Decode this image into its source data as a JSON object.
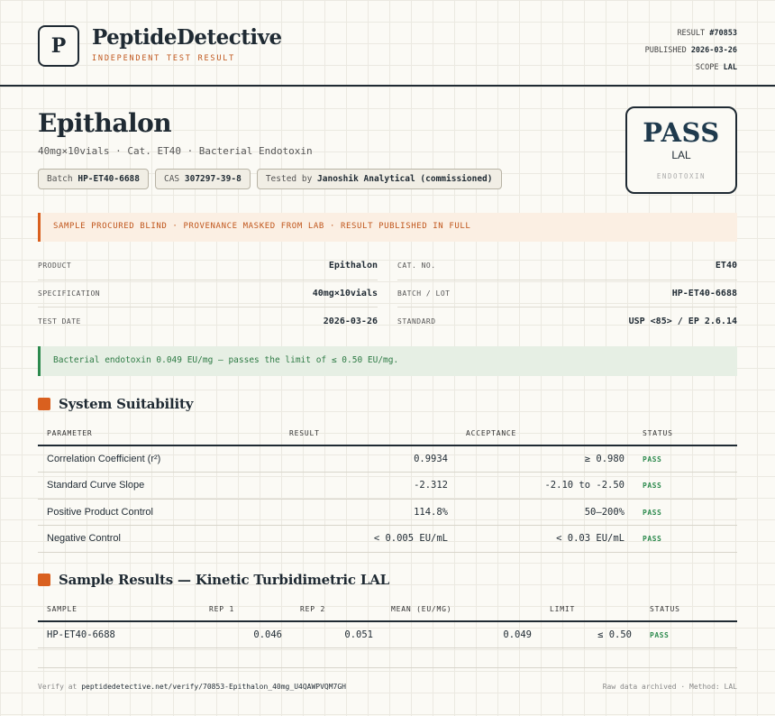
{
  "header": {
    "logo_letter": "P",
    "brand": "PeptideDetective",
    "brand_sub": "INDEPENDENT TEST RESULT",
    "result_label": "RESULT",
    "result_value": "#70853",
    "published_label": "PUBLISHED",
    "published_value": "2026-03-26",
    "scope_label": "SCOPE",
    "scope_value": "LAL"
  },
  "product": {
    "title": "Epithalon",
    "subtitle": "40mg×10vials · Cat. ET40 · Bacterial Endotoxin",
    "chips": [
      {
        "label": "Batch",
        "value": "HP-ET40-6688"
      },
      {
        "label": "CAS",
        "value": "307297-39-8"
      },
      {
        "label": "Tested by",
        "value": "Janoshik Analytical (commissioned)"
      }
    ]
  },
  "verdict": {
    "main": "PASS",
    "method": "LAL",
    "label": "ENDOTOXIN"
  },
  "notice_orange": "SAMPLE PROCURED BLIND · PROVENANCE MASKED FROM LAB · RESULT PUBLISHED IN FULL",
  "info_left": [
    {
      "label": "PRODUCT",
      "value": "Epithalon"
    },
    {
      "label": "SPECIFICATION",
      "value": "40mg×10vials"
    },
    {
      "label": "TEST DATE",
      "value": "2026-03-26"
    }
  ],
  "info_right": [
    {
      "label": "CAT. NO.",
      "value": "ET40"
    },
    {
      "label": "BATCH / LOT",
      "value": "HP-ET40-6688"
    },
    {
      "label": "STANDARD",
      "value": "USP <85> / EP 2.6.14"
    }
  ],
  "notice_green": "Bacterial endotoxin 0.049 EU/mg — passes the limit of ≤ 0.50 EU/mg.",
  "suitability": {
    "title": "System Suitability",
    "headers": [
      "PARAMETER",
      "RESULT",
      "ACCEPTANCE",
      "STATUS"
    ],
    "rows": [
      {
        "param": "Correlation Coefficient (r²)",
        "result": "0.9934",
        "acceptance": "≥ 0.980",
        "status": "PASS"
      },
      {
        "param": "Standard Curve Slope",
        "result": "-2.312",
        "acceptance": "-2.10 to -2.50",
        "status": "PASS"
      },
      {
        "param": "Positive Product Control",
        "result": "114.8%",
        "acceptance": "50–200%",
        "status": "PASS"
      },
      {
        "param": "Negative Control",
        "result": "< 0.005 EU/mL",
        "acceptance": "< 0.03 EU/mL",
        "status": "PASS"
      }
    ]
  },
  "samples": {
    "title": "Sample Results — Kinetic Turbidimetric LAL",
    "headers": [
      "SAMPLE",
      "REP 1",
      "REP 2",
      "MEAN (EU/MG)",
      "LIMIT",
      "STATUS"
    ],
    "rows": [
      {
        "sample": "HP-ET40-6688",
        "rep1": "0.046",
        "rep2": "0.051",
        "mean": "0.049",
        "limit": "≤ 0.50",
        "status": "PASS"
      }
    ]
  },
  "footer": {
    "verify_label": "Verify at",
    "verify_url": "peptidedetective.net/verify/70853-Epithalon_40mg_U4QAWPVQM7GH",
    "right": "Raw data archived · Method: LAL"
  },
  "colors": {
    "accent": "#d9601f",
    "pass": "#2d8a4e",
    "ink": "#1f2a33"
  }
}
